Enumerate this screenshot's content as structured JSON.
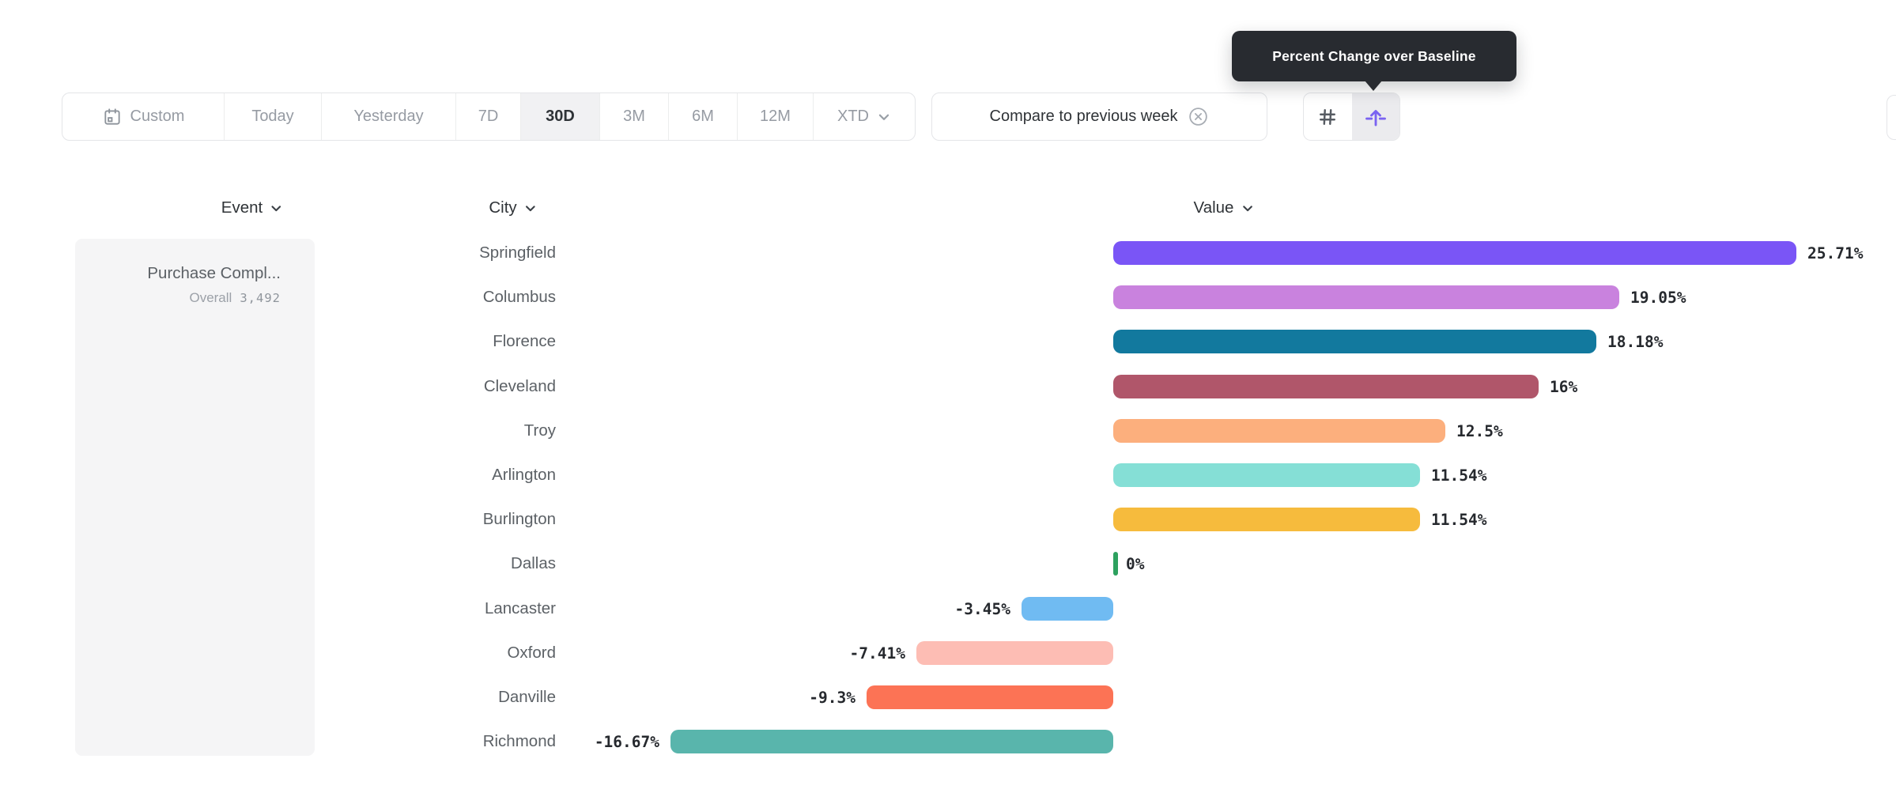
{
  "tooltip": {
    "text": "Percent Change over Baseline"
  },
  "toolbar": {
    "date_ranges": [
      {
        "label": "Custom"
      },
      {
        "label": "Today"
      },
      {
        "label": "Yesterday"
      },
      {
        "label": "7D"
      },
      {
        "label": "30D"
      },
      {
        "label": "3M"
      },
      {
        "label": "6M"
      },
      {
        "label": "12M"
      },
      {
        "label": "XTD"
      }
    ],
    "active_range": "30D",
    "compare_chip_label": "Compare to previous week",
    "icons": {
      "calendar": "calendar-icon",
      "remove_compare": "x-circle-icon",
      "absolute_mode": "hash-icon",
      "percent_change_mode": "arrow-up-from-baseline-icon"
    },
    "accent_color": "#7a63f1"
  },
  "columns": [
    {
      "label": "Event"
    },
    {
      "label": "City"
    },
    {
      "label": "Value"
    }
  ],
  "event_cell": {
    "name": "Purchase Compl...",
    "overall_label": "Overall",
    "overall_value": "3,492"
  },
  "chart_data": {
    "type": "bar",
    "orientation": "horizontal",
    "metric": "Percent Change over Baseline",
    "value_format": "percent",
    "categories": [
      "Springfield",
      "Columbus",
      "Florence",
      "Cleveland",
      "Troy",
      "Arlington",
      "Burlington",
      "Dallas",
      "Lancaster",
      "Oxford",
      "Danville",
      "Richmond"
    ],
    "values": [
      25.71,
      19.05,
      18.18,
      16,
      12.5,
      11.54,
      11.54,
      0,
      -3.45,
      -7.41,
      -9.3,
      -16.67
    ],
    "rows": [
      {
        "city": "Springfield",
        "value": 25.71,
        "label": "25.71%",
        "color": "#7a55f6"
      },
      {
        "city": "Columbus",
        "value": 19.05,
        "label": "19.05%",
        "color": "#c982de"
      },
      {
        "city": "Florence",
        "value": 18.18,
        "label": "18.18%",
        "color": "#12799e"
      },
      {
        "city": "Cleveland",
        "value": 16,
        "label": "16%",
        "color": "#b0566a"
      },
      {
        "city": "Troy",
        "value": 12.5,
        "label": "12.5%",
        "color": "#fcaf7d"
      },
      {
        "city": "Arlington",
        "value": 11.54,
        "label": "11.54%",
        "color": "#85dfd6"
      },
      {
        "city": "Burlington",
        "value": 11.54,
        "label": "11.54%",
        "color": "#f6bb3d"
      },
      {
        "city": "Dallas",
        "value": 0,
        "label": "0%",
        "color": "#2da15f"
      },
      {
        "city": "Lancaster",
        "value": -3.45,
        "label": "-3.45%",
        "color": "#70bbf2"
      },
      {
        "city": "Oxford",
        "value": -7.41,
        "label": "-7.41%",
        "color": "#fdbdb4"
      },
      {
        "city": "Danville",
        "value": -9.3,
        "label": "-9.3%",
        "color": "#fc7355"
      },
      {
        "city": "Richmond",
        "value": -16.67,
        "label": "-16.67%",
        "color": "#59b5ac"
      }
    ]
  }
}
